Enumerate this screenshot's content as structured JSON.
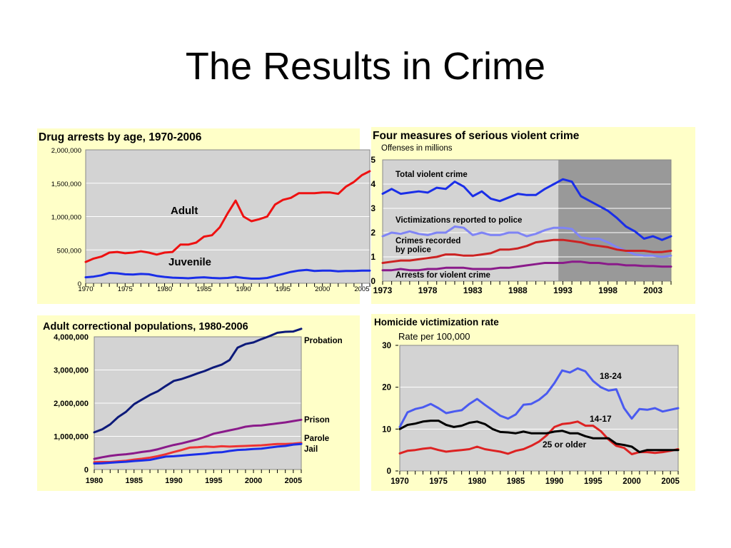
{
  "slide": {
    "title": "The Results in Crime"
  },
  "chart_data": [
    {
      "type": "line",
      "title": "Drug arrests by age, 1970-2006",
      "xlabel": "",
      "ylabel": "",
      "xlim": [
        1970,
        2006
      ],
      "ylim": [
        0,
        2000000
      ],
      "x_ticks": [
        1970,
        1975,
        1980,
        1985,
        1990,
        1995,
        2000,
        2005
      ],
      "y_ticks": [
        0,
        500000,
        1000000,
        1500000,
        2000000
      ],
      "y_tick_labels": [
        "0",
        "500,000",
        "1,000,000",
        "1,500,000",
        "2,000,000"
      ],
      "grid": true,
      "series": [
        {
          "name": "Adult",
          "color": "#ee1111",
          "x": [
            1970,
            1971,
            1972,
            1973,
            1974,
            1975,
            1976,
            1977,
            1978,
            1979,
            1980,
            1981,
            1982,
            1983,
            1984,
            1985,
            1986,
            1987,
            1988,
            1989,
            1990,
            1991,
            1992,
            1993,
            1994,
            1995,
            1996,
            1997,
            1998,
            1999,
            2000,
            2001,
            2002,
            2003,
            2004,
            2005,
            2006
          ],
          "values": [
            320000,
            370000,
            400000,
            460000,
            470000,
            450000,
            460000,
            480000,
            460000,
            430000,
            460000,
            470000,
            580000,
            580000,
            610000,
            700000,
            720000,
            840000,
            1050000,
            1240000,
            1000000,
            930000,
            960000,
            1000000,
            1180000,
            1250000,
            1280000,
            1350000,
            1350000,
            1350000,
            1360000,
            1360000,
            1340000,
            1450000,
            1520000,
            1620000,
            1680000
          ]
        },
        {
          "name": "Juvenile",
          "color": "#1a2ee8",
          "x": [
            1970,
            1971,
            1972,
            1973,
            1974,
            1975,
            1976,
            1977,
            1978,
            1979,
            1980,
            1981,
            1982,
            1983,
            1984,
            1985,
            1986,
            1987,
            1988,
            1989,
            1990,
            1991,
            1992,
            1993,
            1994,
            1995,
            1996,
            1997,
            1998,
            1999,
            2000,
            2001,
            2002,
            2003,
            2004,
            2005,
            2006
          ],
          "values": [
            90000,
            100000,
            120000,
            155000,
            150000,
            135000,
            130000,
            140000,
            135000,
            110000,
            95000,
            85000,
            80000,
            75000,
            85000,
            90000,
            80000,
            75000,
            80000,
            95000,
            80000,
            70000,
            70000,
            80000,
            110000,
            140000,
            170000,
            190000,
            200000,
            185000,
            190000,
            190000,
            180000,
            185000,
            185000,
            190000,
            190000
          ]
        }
      ]
    },
    {
      "type": "line",
      "title": "Four measures of serious violent crime",
      "subtitle": "Offenses in millions",
      "xlabel": "",
      "ylabel": "",
      "xlim": [
        1973,
        2005
      ],
      "ylim": [
        0,
        5
      ],
      "x_ticks": [
        1973,
        1978,
        1983,
        1988,
        1993,
        1998,
        2003
      ],
      "y_ticks": [
        0,
        1,
        2,
        3,
        4,
        5
      ],
      "shaded_region_start": 1992.5,
      "grid": true,
      "series": [
        {
          "name": "Total violent crime",
          "color": "#1a2ee8",
          "x": [
            1973,
            1974,
            1975,
            1976,
            1977,
            1978,
            1979,
            1980,
            1981,
            1982,
            1983,
            1984,
            1985,
            1986,
            1987,
            1988,
            1989,
            1990,
            1991,
            1992,
            1993,
            1994,
            1995,
            1996,
            1997,
            1998,
            1999,
            2000,
            2001,
            2002,
            2003,
            2004,
            2005
          ],
          "values": [
            3.6,
            3.8,
            3.6,
            3.65,
            3.7,
            3.65,
            3.85,
            3.8,
            4.1,
            3.9,
            3.5,
            3.7,
            3.4,
            3.3,
            3.45,
            3.6,
            3.55,
            3.55,
            3.8,
            4.0,
            4.2,
            4.1,
            3.5,
            3.3,
            3.1,
            2.9,
            2.6,
            2.25,
            2.05,
            1.75,
            1.85,
            1.7,
            1.85
          ]
        },
        {
          "name": "Victimizations reported to police",
          "color": "#7f84f5",
          "x": [
            1973,
            1974,
            1975,
            1976,
            1977,
            1978,
            1979,
            1980,
            1981,
            1982,
            1983,
            1984,
            1985,
            1986,
            1987,
            1988,
            1989,
            1990,
            1991,
            1992,
            1993,
            1994,
            1995,
            1996,
            1997,
            1998,
            1999,
            2000,
            2001,
            2002,
            2003,
            2004,
            2005
          ],
          "values": [
            1.85,
            2.0,
            1.95,
            2.05,
            1.95,
            1.9,
            2.0,
            2.0,
            2.25,
            2.2,
            1.9,
            2.0,
            1.9,
            1.9,
            2.0,
            2.0,
            1.85,
            1.95,
            2.1,
            2.2,
            2.2,
            2.15,
            1.8,
            1.75,
            1.75,
            1.6,
            1.4,
            1.25,
            1.1,
            1.05,
            1.05,
            1.0,
            1.05
          ]
        },
        {
          "name": "Crimes recorded by police",
          "color": "#cc2222",
          "x": [
            1973,
            1974,
            1975,
            1976,
            1977,
            1978,
            1979,
            1980,
            1981,
            1982,
            1983,
            1984,
            1985,
            1986,
            1987,
            1988,
            1989,
            1990,
            1991,
            1992,
            1993,
            1994,
            1995,
            1996,
            1997,
            1998,
            1999,
            2000,
            2001,
            2002,
            2003,
            2004,
            2005
          ],
          "values": [
            0.75,
            0.8,
            0.85,
            0.85,
            0.9,
            0.95,
            1.0,
            1.1,
            1.1,
            1.05,
            1.05,
            1.1,
            1.15,
            1.3,
            1.3,
            1.35,
            1.45,
            1.6,
            1.65,
            1.7,
            1.7,
            1.65,
            1.6,
            1.5,
            1.45,
            1.4,
            1.3,
            1.25,
            1.25,
            1.25,
            1.2,
            1.2,
            1.25
          ]
        },
        {
          "name": "Arrests for violent crime",
          "color": "#8a1a8a",
          "x": [
            1973,
            1974,
            1975,
            1976,
            1977,
            1978,
            1979,
            1980,
            1981,
            1982,
            1983,
            1984,
            1985,
            1986,
            1987,
            1988,
            1989,
            1990,
            1991,
            1992,
            1993,
            1994,
            1995,
            1996,
            1997,
            1998,
            1999,
            2000,
            2001,
            2002,
            2003,
            2004,
            2005
          ],
          "values": [
            0.45,
            0.45,
            0.5,
            0.45,
            0.45,
            0.5,
            0.5,
            0.55,
            0.55,
            0.55,
            0.5,
            0.5,
            0.5,
            0.55,
            0.55,
            0.6,
            0.65,
            0.7,
            0.75,
            0.75,
            0.75,
            0.8,
            0.8,
            0.75,
            0.75,
            0.7,
            0.7,
            0.65,
            0.65,
            0.62,
            0.62,
            0.6,
            0.6
          ]
        }
      ]
    },
    {
      "type": "line",
      "title": "Adult correctional populations, 1980-2006",
      "xlabel": "",
      "ylabel": "",
      "xlim": [
        1980,
        2006
      ],
      "ylim": [
        0,
        4000000
      ],
      "x_ticks": [
        1980,
        1985,
        1990,
        1995,
        2000,
        2005
      ],
      "y_ticks": [
        0,
        1000000,
        2000000,
        3000000,
        4000000
      ],
      "y_tick_labels": [
        "0",
        "1,000,000",
        "2,000,000",
        "3,000,000",
        "4,000,000"
      ],
      "grid": true,
      "series": [
        {
          "name": "Probation",
          "color": "#0d1a7a",
          "x": [
            1980,
            1981,
            1982,
            1983,
            1984,
            1985,
            1986,
            1987,
            1988,
            1989,
            1990,
            1991,
            1992,
            1993,
            1994,
            1995,
            1996,
            1997,
            1998,
            1999,
            2000,
            2001,
            2002,
            2003,
            2004,
            2005,
            2006
          ],
          "values": [
            1120000,
            1210000,
            1360000,
            1580000,
            1740000,
            1970000,
            2110000,
            2250000,
            2360000,
            2520000,
            2670000,
            2730000,
            2810000,
            2900000,
            2980000,
            3080000,
            3160000,
            3300000,
            3670000,
            3780000,
            3830000,
            3930000,
            4020000,
            4120000,
            4150000,
            4160000,
            4240000
          ]
        },
        {
          "name": "Prison",
          "color": "#8a1a8a",
          "x": [
            1980,
            1981,
            1982,
            1983,
            1984,
            1985,
            1986,
            1987,
            1988,
            1989,
            1990,
            1991,
            1992,
            1993,
            1994,
            1995,
            1996,
            1997,
            1998,
            1999,
            2000,
            2001,
            2002,
            2003,
            2004,
            2005,
            2006
          ],
          "values": [
            320000,
            370000,
            410000,
            440000,
            460000,
            490000,
            530000,
            560000,
            610000,
            680000,
            740000,
            790000,
            850000,
            910000,
            990000,
            1080000,
            1130000,
            1180000,
            1230000,
            1290000,
            1320000,
            1330000,
            1360000,
            1390000,
            1420000,
            1460000,
            1500000
          ]
        },
        {
          "name": "Parole",
          "color": "#ee3333",
          "x": [
            1980,
            1981,
            1982,
            1983,
            1984,
            1985,
            1986,
            1987,
            1988,
            1989,
            1990,
            1991,
            1992,
            1993,
            1994,
            1995,
            1996,
            1997,
            1998,
            1999,
            2000,
            2001,
            2002,
            2003,
            2004,
            2005,
            2006
          ],
          "values": [
            220000,
            225000,
            225000,
            245000,
            265000,
            300000,
            325000,
            360000,
            405000,
            460000,
            530000,
            590000,
            660000,
            670000,
            690000,
            680000,
            700000,
            690000,
            700000,
            710000,
            720000,
            730000,
            750000,
            770000,
            770000,
            780000,
            800000
          ]
        },
        {
          "name": "Jail",
          "color": "#1a2ee8",
          "x": [
            1980,
            1981,
            1982,
            1983,
            1984,
            1985,
            1986,
            1987,
            1988,
            1989,
            1990,
            1991,
            1992,
            1993,
            1994,
            1995,
            1996,
            1997,
            1998,
            1999,
            2000,
            2001,
            2002,
            2003,
            2004,
            2005,
            2006
          ],
          "values": [
            180000,
            190000,
            205000,
            220000,
            235000,
            255000,
            270000,
            290000,
            340000,
            390000,
            400000,
            420000,
            440000,
            460000,
            480000,
            510000,
            520000,
            560000,
            590000,
            600000,
            620000,
            630000,
            660000,
            690000,
            710000,
            750000,
            770000
          ]
        }
      ]
    },
    {
      "type": "line",
      "title": "Homicide victimization rate",
      "subtitle": "Rate per 100,000",
      "xlabel": "",
      "ylabel": "",
      "xlim": [
        1970,
        2006
      ],
      "ylim": [
        0,
        30
      ],
      "x_ticks": [
        1970,
        1975,
        1980,
        1985,
        1990,
        1995,
        2000,
        2005
      ],
      "y_ticks": [
        0,
        10,
        20,
        30
      ],
      "grid": true,
      "series": [
        {
          "name": "18-24",
          "color": "#4a5af0",
          "x": [
            1970,
            1971,
            1972,
            1973,
            1974,
            1975,
            1976,
            1977,
            1978,
            1979,
            1980,
            1981,
            1982,
            1983,
            1984,
            1985,
            1986,
            1987,
            1988,
            1989,
            1990,
            1991,
            1992,
            1993,
            1994,
            1995,
            1996,
            1997,
            1998,
            1999,
            2000,
            2001,
            2002,
            2003,
            2004,
            2005,
            2006
          ],
          "values": [
            10.5,
            14,
            14.8,
            15.2,
            16,
            15,
            13.8,
            14.2,
            14.5,
            16,
            17.2,
            15.8,
            14.5,
            13.2,
            12.5,
            13.5,
            15.8,
            16,
            17,
            18.5,
            21,
            24,
            23.5,
            24.5,
            23.8,
            21.5,
            20,
            19.2,
            19.5,
            15,
            12.5,
            14.8,
            14.6,
            15,
            14.2,
            14.6,
            15
          ]
        },
        {
          "name": "14-17",
          "color": "#dd2222",
          "x": [
            1970,
            1971,
            1972,
            1973,
            1974,
            1975,
            1976,
            1977,
            1978,
            1979,
            1980,
            1981,
            1982,
            1983,
            1984,
            1985,
            1986,
            1987,
            1988,
            1989,
            1990,
            1991,
            1992,
            1993,
            1994,
            1995,
            1996,
            1997,
            1998,
            1999,
            2000,
            2001,
            2002,
            2003,
            2004,
            2005,
            2006
          ],
          "values": [
            4.2,
            4.8,
            5,
            5.3,
            5.5,
            5,
            4.6,
            4.8,
            5,
            5.2,
            5.8,
            5.2,
            4.9,
            4.6,
            4.1,
            4.8,
            5.2,
            6,
            7,
            8.5,
            10.5,
            11.2,
            11.4,
            11.8,
            10.8,
            10.8,
            9.5,
            7.5,
            6,
            5.5,
            4,
            4.5,
            4.5,
            4.3,
            4.5,
            4.8,
            5.2
          ]
        },
        {
          "name": "25 or older",
          "color": "#000000",
          "x": [
            1970,
            1971,
            1972,
            1973,
            1974,
            1975,
            1976,
            1977,
            1978,
            1979,
            1980,
            1981,
            1982,
            1983,
            1984,
            1985,
            1986,
            1987,
            1988,
            1989,
            1990,
            1991,
            1992,
            1993,
            1994,
            1995,
            1996,
            1997,
            1998,
            1999,
            2000,
            2001,
            2002,
            2003,
            2004,
            2005,
            2006
          ],
          "values": [
            10,
            11,
            11.3,
            11.8,
            12,
            12,
            11,
            10.5,
            10.8,
            11.5,
            11.8,
            11.2,
            10,
            9.3,
            9.2,
            9,
            9.4,
            9,
            9,
            9,
            9.4,
            9.6,
            9,
            9,
            8.3,
            7.8,
            7.8,
            7.8,
            6.5,
            6.2,
            5.8,
            4.5,
            5,
            5,
            5,
            5,
            5
          ]
        }
      ]
    }
  ]
}
